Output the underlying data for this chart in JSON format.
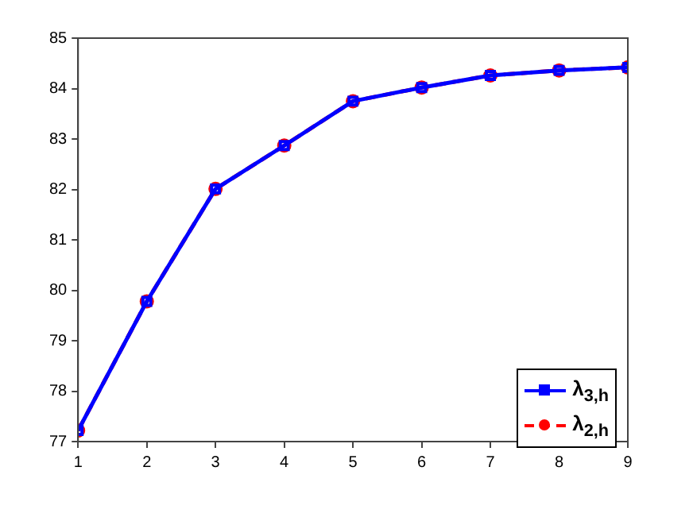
{
  "chart_data": {
    "type": "line",
    "x": [
      1,
      2,
      3,
      4,
      5,
      6,
      7,
      8,
      9
    ],
    "series": [
      {
        "name": "λ$_{3,h}$",
        "color": "#0000ff",
        "values": [
          77.22,
          79.78,
          82.01,
          82.87,
          83.75,
          84.02,
          84.26,
          84.36,
          84.42
        ],
        "marker": "square",
        "line_style": "solid"
      },
      {
        "name": "λ$_{2,h}$",
        "color": "#ff0000",
        "values": [
          77.22,
          79.78,
          82.01,
          82.87,
          83.75,
          84.02,
          84.26,
          84.36,
          84.42
        ],
        "marker": "circle",
        "line_style": "dashed"
      }
    ],
    "xlim": [
      1,
      9
    ],
    "xticks": [
      1,
      2,
      3,
      4,
      5,
      6,
      7,
      8,
      9
    ],
    "ylim": [
      77,
      85
    ],
    "yticks": [
      77,
      78,
      79,
      80,
      81,
      82,
      83,
      84,
      85
    ],
    "grid": false,
    "legend": "bottom right"
  }
}
